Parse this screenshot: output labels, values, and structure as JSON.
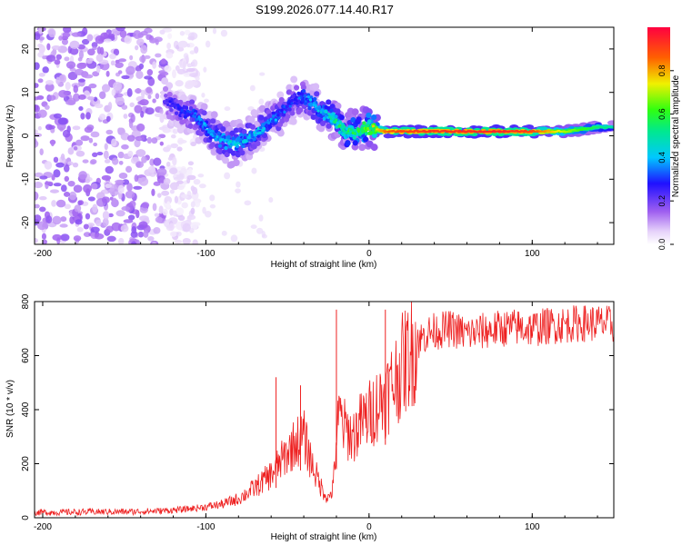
{
  "title": "S199.2026.077.14.40.R17",
  "colors": {
    "snr_line": "#ee2020",
    "background": "#ffffff",
    "frame": "#000000"
  },
  "colorbar": {
    "label": "Normalized spectral amplitude",
    "range": [
      0,
      1
    ],
    "ticks": [
      0.0,
      0.2,
      0.4,
      0.6,
      0.8
    ],
    "tick_labels": [
      "0.0",
      "0.2",
      "0.4",
      "0.6",
      "0.8"
    ],
    "colormap": "purple-blue-cyan-green-yellow-red"
  },
  "chart_data": [
    {
      "type": "heatmap",
      "name": "spectrogram",
      "xlabel": "Height of straight line (km)",
      "ylabel": "Frequency (Hz)",
      "xlim": [
        -205,
        150
      ],
      "ylim": [
        -25,
        25
      ],
      "x_ticks": [
        -200,
        -100,
        0,
        100
      ],
      "x_tick_labels": [
        "-200",
        "-100",
        "0",
        "100"
      ],
      "y_ticks": [
        -20,
        -10,
        0,
        10,
        20
      ],
      "y_tick_labels": [
        "-20",
        "-10",
        "0",
        "10",
        "20"
      ],
      "ridge": {
        "description": "dominant frequency ridge vs height",
        "x": [
          -125,
          -115,
          -105,
          -95,
          -85,
          -75,
          -65,
          -55,
          -47,
          -40,
          -30,
          -22,
          -15,
          -5,
          0,
          10,
          20,
          40,
          60,
          80,
          100,
          120,
          140,
          150
        ],
        "y": [
          8,
          6,
          4,
          0,
          -2,
          -1,
          2,
          5,
          8,
          9,
          6,
          4,
          1,
          1,
          2,
          1,
          1,
          1,
          1,
          1,
          1,
          1,
          2,
          2
        ],
        "amplitude": [
          0.25,
          0.3,
          0.35,
          0.4,
          0.45,
          0.4,
          0.4,
          0.35,
          0.3,
          0.35,
          0.4,
          0.5,
          0.55,
          0.6,
          0.65,
          0.85,
          0.9,
          0.92,
          0.93,
          0.95,
          0.9,
          0.7,
          0.55,
          0.5
        ]
      },
      "noise_region_x": [
        -205,
        -125
      ]
    },
    {
      "type": "line",
      "name": "snr",
      "xlabel": "Height of straight line (km)",
      "ylabel": "SNR (10 * v/v)",
      "xlim": [
        -205,
        150
      ],
      "ylim": [
        0,
        800
      ],
      "x_ticks": [
        -200,
        -100,
        0,
        100
      ],
      "x_tick_labels": [
        "-200",
        "-100",
        "0",
        "100"
      ],
      "y_ticks": [
        0,
        200,
        400,
        600,
        800
      ],
      "y_tick_labels": [
        "0",
        "200",
        "400",
        "600",
        "800"
      ],
      "series": [
        {
          "name": "SNR",
          "x": [
            -205,
            -190,
            -170,
            -150,
            -130,
            -115,
            -100,
            -90,
            -80,
            -70,
            -60,
            -55,
            -50,
            -45,
            -40,
            -35,
            -30,
            -25,
            -22,
            -20,
            -18,
            -15,
            -10,
            -5,
            0,
            5,
            10,
            15,
            20,
            25,
            30,
            35,
            40,
            50,
            60,
            70,
            80,
            90,
            100,
            110,
            120,
            130,
            140,
            150
          ],
          "y": [
            20,
            20,
            22,
            22,
            25,
            30,
            40,
            50,
            70,
            110,
            160,
            200,
            240,
            280,
            300,
            200,
            120,
            70,
            110,
            300,
            380,
            330,
            300,
            350,
            380,
            420,
            450,
            500,
            560,
            610,
            650,
            680,
            690,
            700,
            680,
            690,
            700,
            705,
            700,
            710,
            715,
            720,
            720,
            715
          ],
          "spikes": [
            {
              "x": -20,
              "y": 770
            },
            {
              "x": 10,
              "y": 770
            },
            {
              "x": -57,
              "y": 520
            },
            {
              "x": -42,
              "y": 490
            }
          ]
        }
      ]
    }
  ]
}
